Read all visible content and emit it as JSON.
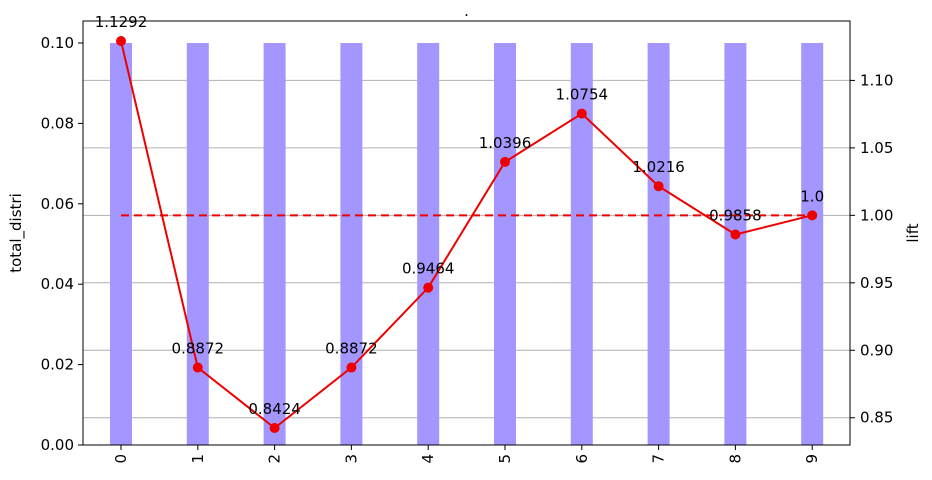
{
  "chart_data": {
    "type": "bar",
    "title": ".",
    "categories": [
      "0",
      "1",
      "2",
      "3",
      "4",
      "5",
      "6",
      "7",
      "8",
      "9"
    ],
    "bar_series": {
      "values": [
        0.1,
        0.1,
        0.1,
        0.1,
        0.1,
        0.1,
        0.1,
        0.1,
        0.1,
        0.1
      ],
      "color": "#a397ff"
    },
    "line_series": {
      "values": [
        1.1292,
        0.8872,
        0.8424,
        0.8872,
        0.9464,
        1.0396,
        1.0754,
        1.0216,
        0.9858,
        1.0
      ],
      "labels": [
        "1.1292",
        "0.8872",
        "0.8424",
        "0.8872",
        "0.9464",
        "1.0396",
        "1.0754",
        "1.0216",
        "0.9858",
        "1.0"
      ],
      "color": "#ee0000"
    },
    "reference_line": {
      "value": 1.0,
      "style": "dashed",
      "color": "#ee0000"
    },
    "y_left": {
      "label": "total_distri",
      "ylim": [
        0,
        0.1
      ],
      "ticks": [
        "0.00",
        "0.02",
        "0.04",
        "0.06",
        "0.08",
        "0.10"
      ]
    },
    "y_right": {
      "label": "lift",
      "ylim": [
        0.8298,
        1.1292
      ],
      "ticks": [
        "0.85",
        "0.90",
        "0.95",
        "1.00",
        "1.05",
        "1.10"
      ]
    },
    "xtick_rotation": "vertical",
    "grid": "horizontal, right axis"
  }
}
